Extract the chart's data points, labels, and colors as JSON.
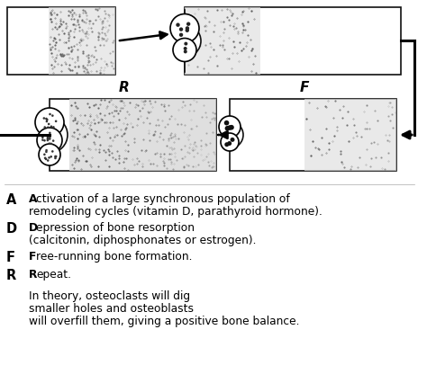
{
  "bg_color": "#ffffff",
  "text_color": "#000000",
  "label_A": "A",
  "label_D": "D",
  "label_R": "R",
  "label_F": "F",
  "note_line1": "In theory, osteoclasts will dig",
  "note_line2": "smaller holes and osteoblasts",
  "note_line3": "will overfill them, giving a positive bone balance."
}
